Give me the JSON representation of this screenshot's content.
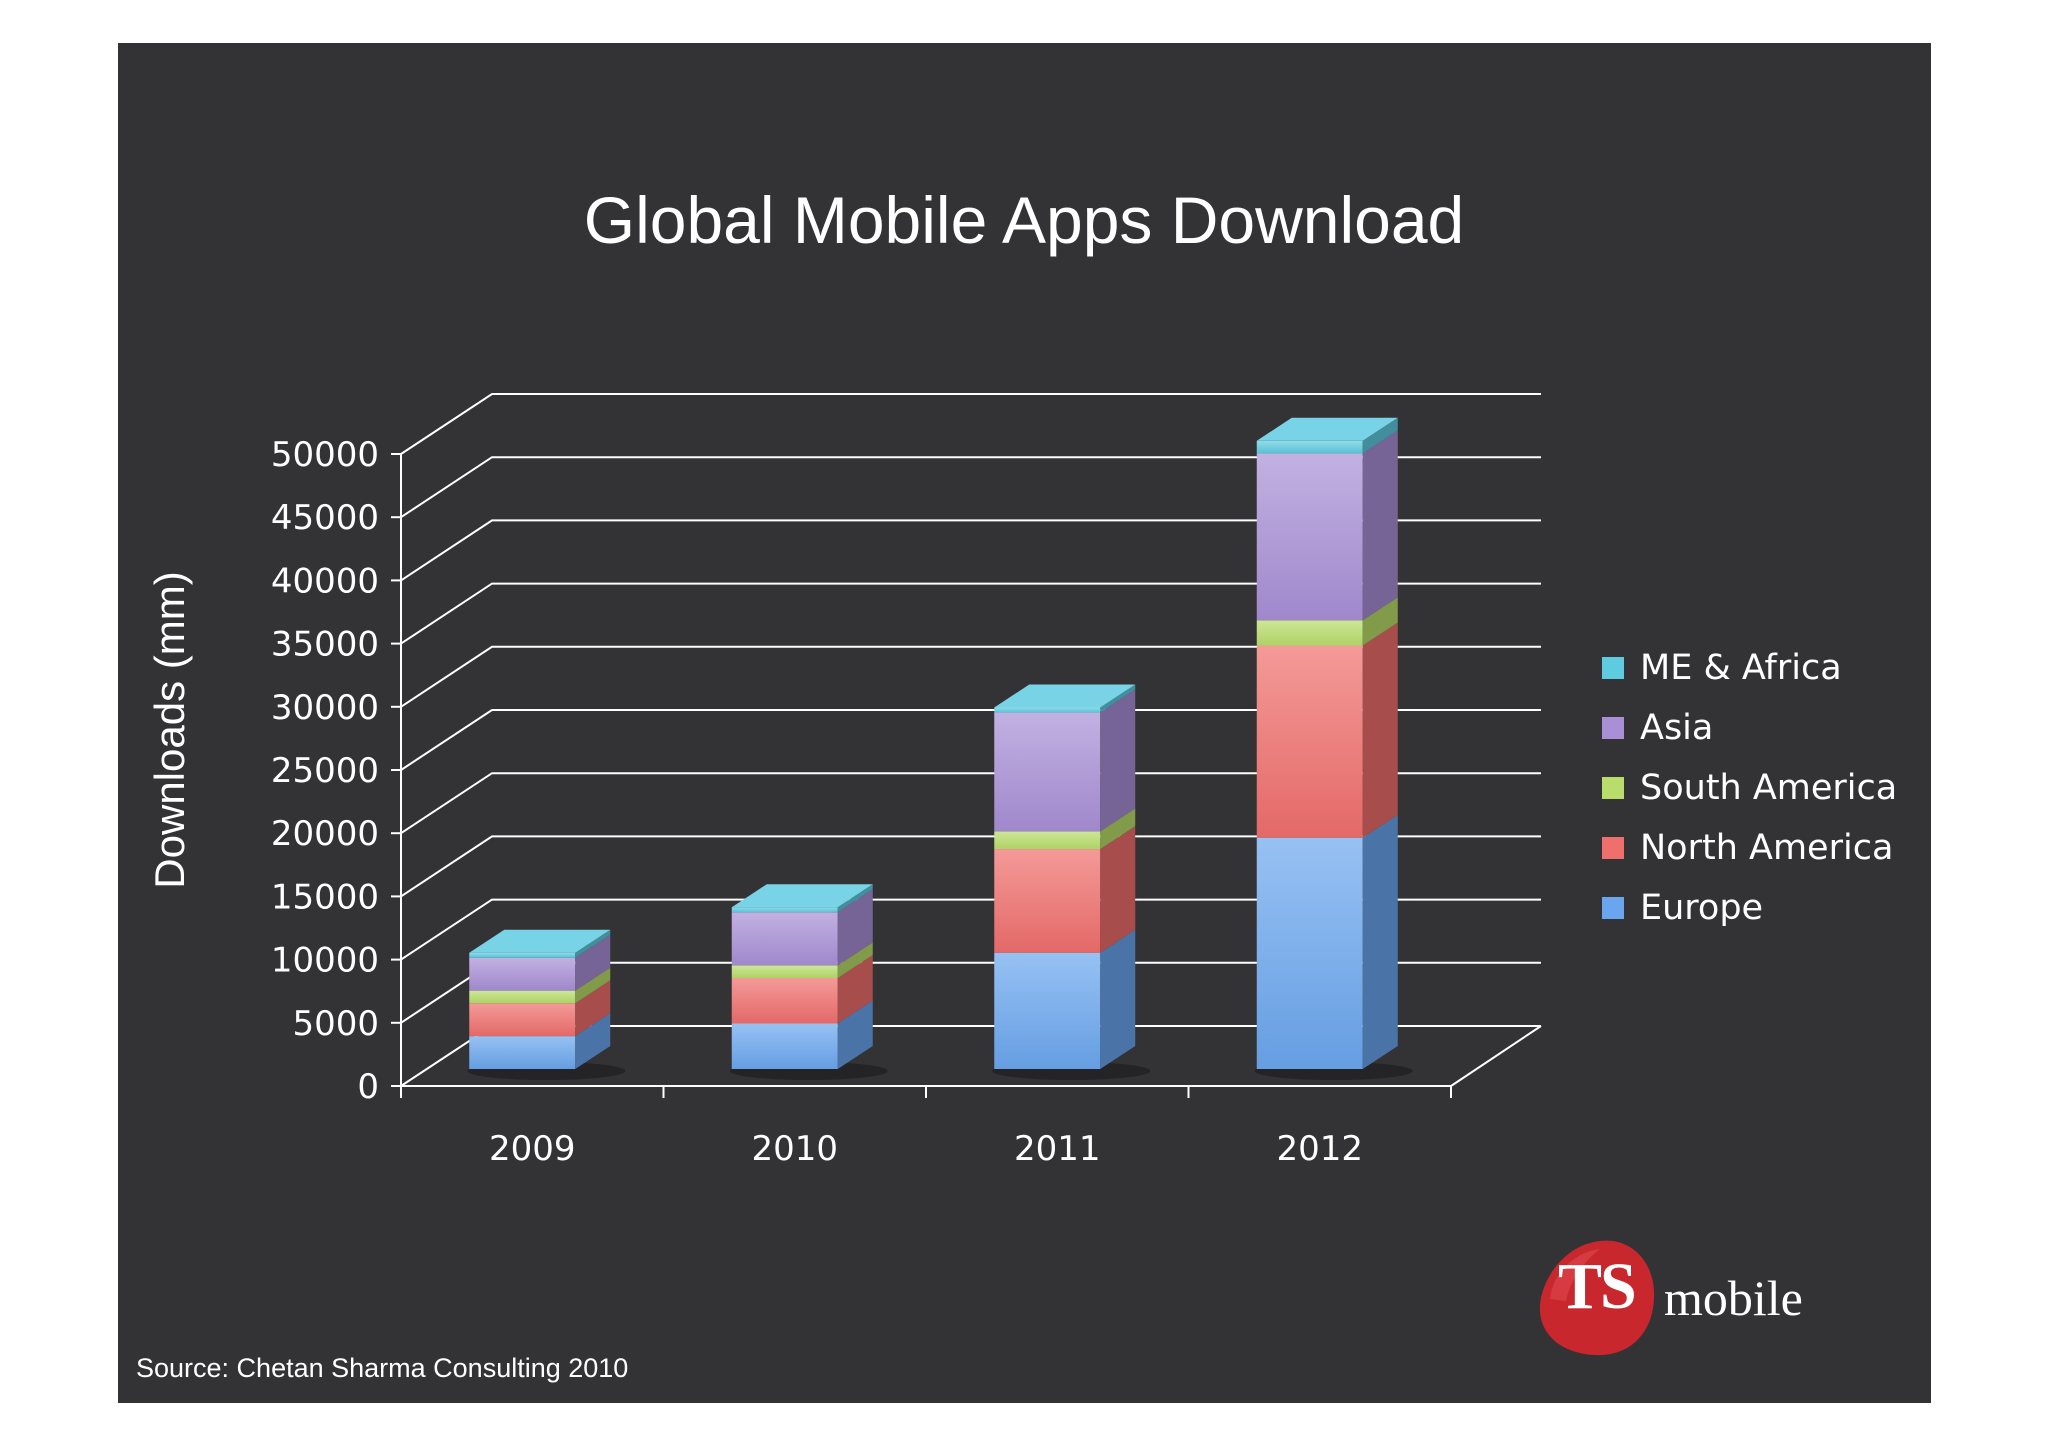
{
  "page": {
    "source_note": "Source: Chetan Sharma Consulting 2010",
    "logo": {
      "mark": "TS",
      "word": "mobile",
      "color": "#c9272e"
    }
  },
  "colors": {
    "background": "#333234",
    "gridline": "#ffffff",
    "text": "#ffffff"
  },
  "chart_data": {
    "type": "bar",
    "stacked": true,
    "three_d": true,
    "title": "Global Mobile Apps Download",
    "ylabel": "Downloads (mm)",
    "xlabel": "",
    "ylim": [
      0,
      50000
    ],
    "ytick_step": 5000,
    "yticks": [
      "0",
      "5000",
      "10000",
      "15000",
      "20000",
      "25000",
      "30000",
      "35000",
      "40000",
      "45000",
      "50000"
    ],
    "grid": true,
    "legend_position": "right",
    "categories": [
      "2009",
      "2010",
      "2011",
      "2012"
    ],
    "series": [
      {
        "name": "Europe",
        "color": "#6aa6ee",
        "values": [
          2600,
          3600,
          9200,
          18300
        ]
      },
      {
        "name": "North America",
        "color": "#ef6f6c",
        "values": [
          2600,
          3600,
          8200,
          15200
        ]
      },
      {
        "name": "South America",
        "color": "#b8dd6a",
        "values": [
          1000,
          1000,
          1400,
          2000
        ]
      },
      {
        "name": "Asia",
        "color": "#a88fd6",
        "values": [
          2600,
          4200,
          9400,
          13200
        ]
      },
      {
        "name": "ME & Africa",
        "color": "#5fcbe0",
        "values": [
          400,
          400,
          400,
          1000
        ]
      }
    ]
  }
}
